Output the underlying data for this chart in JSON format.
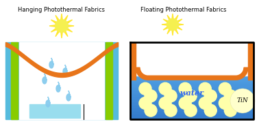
{
  "title_left": "Hanging Photothermal Fabrics",
  "title_right": "Floating Photothermal Fabrics",
  "bg_color": "#ffffff",
  "orange_color": "#E8751A",
  "green_color": "#88CC00",
  "cyan_color": "#55BBDD",
  "blue_light": "#66BBEE",
  "blue_mid": "#3388DD",
  "blue_dark": "#1155BB",
  "drop_color": "#88CCEE",
  "dot_color": "#FFFFAA",
  "water_text_color": "#3366EE",
  "tin_bg": "#FFFFCC",
  "sun_outer": "#FFE833",
  "sun_inner": "#F5F050"
}
